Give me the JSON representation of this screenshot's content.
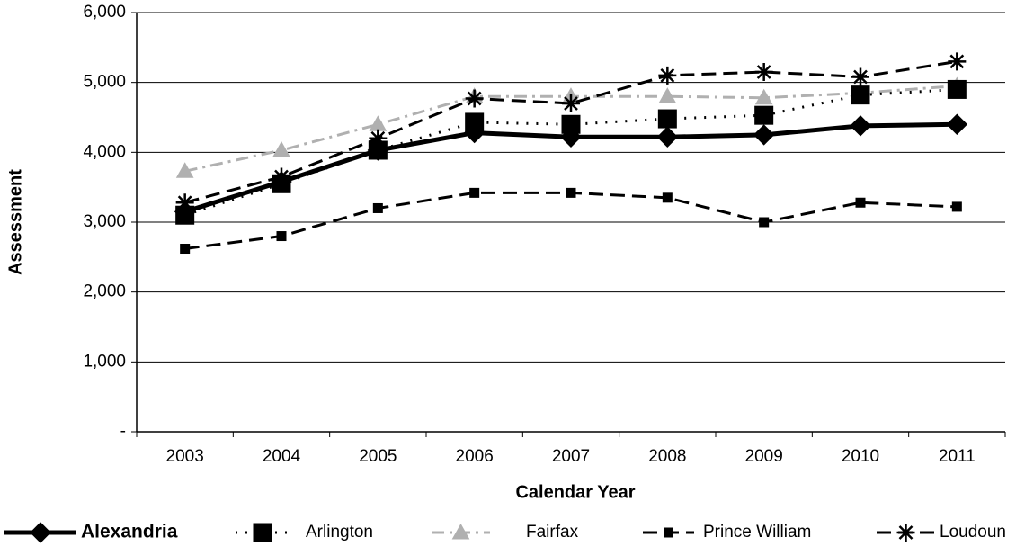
{
  "chart_data": {
    "type": "line",
    "x_label": "Calendar Year",
    "y_label": "Assessment",
    "categories": [
      "2003",
      "2004",
      "2005",
      "2006",
      "2007",
      "2008",
      "2009",
      "2010",
      "2011"
    ],
    "series": [
      {
        "name": "Alexandria",
        "color": "#000000",
        "line_style": "solid",
        "marker": "diamond",
        "values": [
          3150,
          3580,
          4030,
          4280,
          4220,
          4220,
          4250,
          4380,
          4400
        ]
      },
      {
        "name": "Arlington",
        "color": "#000000",
        "line_style": "dotted",
        "marker": "square",
        "values": [
          3100,
          3550,
          4030,
          4430,
          4400,
          4480,
          4530,
          4820,
          4900
        ]
      },
      {
        "name": "Fairfax",
        "color": "#b0b0b0",
        "line_style": "dashdot",
        "marker": "triangle",
        "values": [
          3730,
          4030,
          4400,
          4800,
          4800,
          4800,
          4780,
          4850,
          4950
        ]
      },
      {
        "name": "Prince William",
        "color": "#000000",
        "line_style": "dashed",
        "marker": "small-square",
        "values": [
          2620,
          2800,
          3200,
          3420,
          3420,
          3350,
          3000,
          3280,
          3220
        ]
      },
      {
        "name": "Loudoun",
        "color": "#000000",
        "line_style": "dashed",
        "marker": "asterisk",
        "values": [
          3280,
          3650,
          4200,
          4770,
          4700,
          5100,
          5150,
          5080,
          5300
        ]
      }
    ],
    "ylim": [
      0,
      6000
    ],
    "yticks": [
      {
        "value": 0,
        "label": "-"
      },
      {
        "value": 1000,
        "label": "1,000"
      },
      {
        "value": 2000,
        "label": "2,000"
      },
      {
        "value": 3000,
        "label": "3,000"
      },
      {
        "value": 4000,
        "label": "4,000"
      },
      {
        "value": 5000,
        "label": "5,000"
      },
      {
        "value": 6000,
        "label": "6,000"
      }
    ],
    "grid": true,
    "legend": "bottom"
  }
}
